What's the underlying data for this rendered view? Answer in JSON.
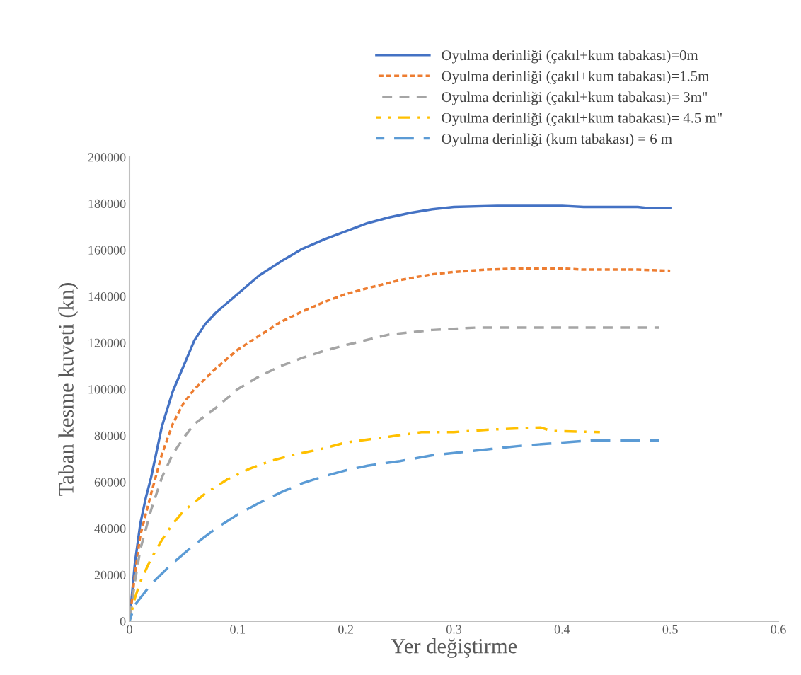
{
  "chart_data": {
    "type": "line",
    "xlabel": "Yer değiştirme",
    "ylabel": "Taban kesme kuveti (kn)",
    "xlim": [
      0,
      0.6
    ],
    "xticks": [
      0,
      0.1,
      0.2,
      0.3,
      0.4,
      0.5,
      0.6
    ],
    "ylim": [
      0,
      200000
    ],
    "yticks": [
      0,
      20000,
      40000,
      60000,
      80000,
      100000,
      120000,
      140000,
      160000,
      180000,
      200000
    ],
    "grid": false,
    "legend": "top right",
    "marker": "none",
    "series": [
      {
        "name": "Oyulma derinliği (çakıl+kum tabakası)=0m",
        "color": "#4472c4",
        "line_style": "solid",
        "x": [
          0,
          0.005,
          0.01,
          0.015,
          0.02,
          0.03,
          0.04,
          0.05,
          0.06,
          0.07,
          0.08,
          0.1,
          0.12,
          0.14,
          0.16,
          0.18,
          0.2,
          0.22,
          0.24,
          0.26,
          0.28,
          0.3,
          0.34,
          0.4,
          0.42,
          0.47,
          0.48,
          0.5
        ],
        "values": [
          0,
          25000,
          42000,
          53000,
          62000,
          84000,
          99000,
          110000,
          121000,
          128000,
          133000,
          141000,
          149000,
          155000,
          160500,
          164500,
          168000,
          171500,
          174000,
          176000,
          177500,
          178500,
          179000,
          179000,
          178500,
          178500,
          178000,
          178000
        ]
      },
      {
        "name": "Oyulma derinliği (çakıl+kum tabakası)=1.5m",
        "color": "#ed7d31",
        "line_style": "dotted",
        "x": [
          0,
          0.005,
          0.01,
          0.02,
          0.03,
          0.04,
          0.05,
          0.06,
          0.08,
          0.1,
          0.12,
          0.14,
          0.16,
          0.18,
          0.2,
          0.22,
          0.25,
          0.28,
          0.3,
          0.33,
          0.36,
          0.4,
          0.42,
          0.47,
          0.5
        ],
        "values": [
          0,
          20000,
          37000,
          55000,
          72000,
          85000,
          94000,
          100000,
          109000,
          117000,
          123000,
          129000,
          133500,
          137500,
          141000,
          143500,
          147000,
          149500,
          150500,
          151500,
          152000,
          152000,
          151500,
          151500,
          151000
        ]
      },
      {
        "name": "Oyulma derinliği (çakıl+kum tabakası)= 3m\"",
        "color": "#a5a5a5",
        "line_style": "dashed",
        "x": [
          0,
          0.005,
          0.01,
          0.02,
          0.03,
          0.04,
          0.05,
          0.06,
          0.08,
          0.1,
          0.12,
          0.14,
          0.16,
          0.18,
          0.2,
          0.24,
          0.28,
          0.3,
          0.32,
          0.49
        ],
        "values": [
          0,
          17000,
          31000,
          48000,
          62000,
          72000,
          79000,
          85000,
          92000,
          100000,
          105500,
          110000,
          113500,
          116500,
          119000,
          123500,
          125500,
          126000,
          126500,
          126500
        ]
      },
      {
        "name": "Oyulma derinliği (çakıl+kum tabakası)= 4.5 m\"",
        "color": "#ffc000",
        "line_style": "dashdot",
        "x": [
          0,
          0.005,
          0.01,
          0.02,
          0.03,
          0.04,
          0.05,
          0.07,
          0.09,
          0.11,
          0.13,
          0.15,
          0.18,
          0.2,
          0.24,
          0.27,
          0.3,
          0.33,
          0.38,
          0.39,
          0.435
        ],
        "values": [
          0,
          10000,
          17000,
          27000,
          35000,
          42000,
          47500,
          55000,
          61000,
          65500,
          69000,
          71500,
          74500,
          77000,
          79500,
          81500,
          81500,
          82500,
          83500,
          82000,
          81500
        ]
      },
      {
        "name": "Oyulma derinliği (kum tabakası) = 6 m",
        "color": "#5b9bd5",
        "line_style": "longdash",
        "x": [
          0,
          0.005,
          0.01,
          0.02,
          0.04,
          0.06,
          0.08,
          0.1,
          0.12,
          0.14,
          0.16,
          0.18,
          0.2,
          0.22,
          0.25,
          0.28,
          0.3,
          0.33,
          0.36,
          0.4,
          0.43,
          0.49
        ],
        "values": [
          0,
          7000,
          10000,
          16000,
          25000,
          33000,
          40000,
          46000,
          51000,
          55500,
          59500,
          62500,
          65000,
          67000,
          69000,
          71500,
          72500,
          74000,
          75500,
          77000,
          78000,
          78000
        ]
      }
    ]
  }
}
